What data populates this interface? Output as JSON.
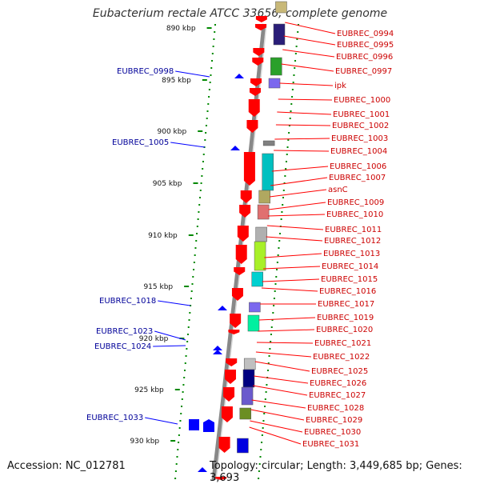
{
  "header": {
    "title": "Eubacterium rectale ATCC 33656, complete genome"
  },
  "footer": {
    "accession": "Accession: NC_012781",
    "summary": "Topology: circular; Length: 3,449,685 bp; Genes: 3,693"
  },
  "scale_ticks": [
    {
      "label": "890 kbp",
      "kbp": 890
    },
    {
      "label": "895 kbp",
      "kbp": 895
    },
    {
      "label": "900 kbp",
      "kbp": 900
    },
    {
      "label": "905 kbp",
      "kbp": 905
    },
    {
      "label": "910 kbp",
      "kbp": 910
    },
    {
      "label": "915 kbp",
      "kbp": 915
    },
    {
      "label": "920 kbp",
      "kbp": 920
    },
    {
      "label": "925 kbp",
      "kbp": 925
    },
    {
      "label": "930 kbp",
      "kbp": 930
    }
  ],
  "reverse_genes": [
    "EUBREC_0998",
    "EUBREC_1005",
    "EUBREC_1018",
    "EUBREC_1023",
    "EUBREC_1024",
    "EUBREC_1033"
  ],
  "forward_genes": [
    "EUBREC_0994",
    "EUBREC_0995",
    "EUBREC_0996",
    "EUBREC_0997",
    "ipk",
    "EUBREC_1000",
    "EUBREC_1001",
    "EUBREC_1002",
    "EUBREC_1003",
    "EUBREC_1004",
    "EUBREC_1006",
    "EUBREC_1007",
    "asnC",
    "EUBREC_1009",
    "EUBREC_1010",
    "EUBREC_1011",
    "EUBREC_1012",
    "EUBREC_1013",
    "EUBREC_1014",
    "EUBREC_1015",
    "EUBREC_1016",
    "EUBREC_1017",
    "EUBREC_1019",
    "EUBREC_1020",
    "EUBREC_1021",
    "EUBREC_1022",
    "EUBREC_1025",
    "EUBREC_1026",
    "EUBREC_1027",
    "EUBREC_1028",
    "EUBREC_1029",
    "EUBREC_1030",
    "EUBREC_1031"
  ],
  "colors": {
    "forward_gene": "#ff0000",
    "reverse_gene": "#0000ff",
    "forward_label": "#cc0000",
    "reverse_label": "#000099",
    "backbone": "#888888",
    "tick_green": "#008800"
  }
}
